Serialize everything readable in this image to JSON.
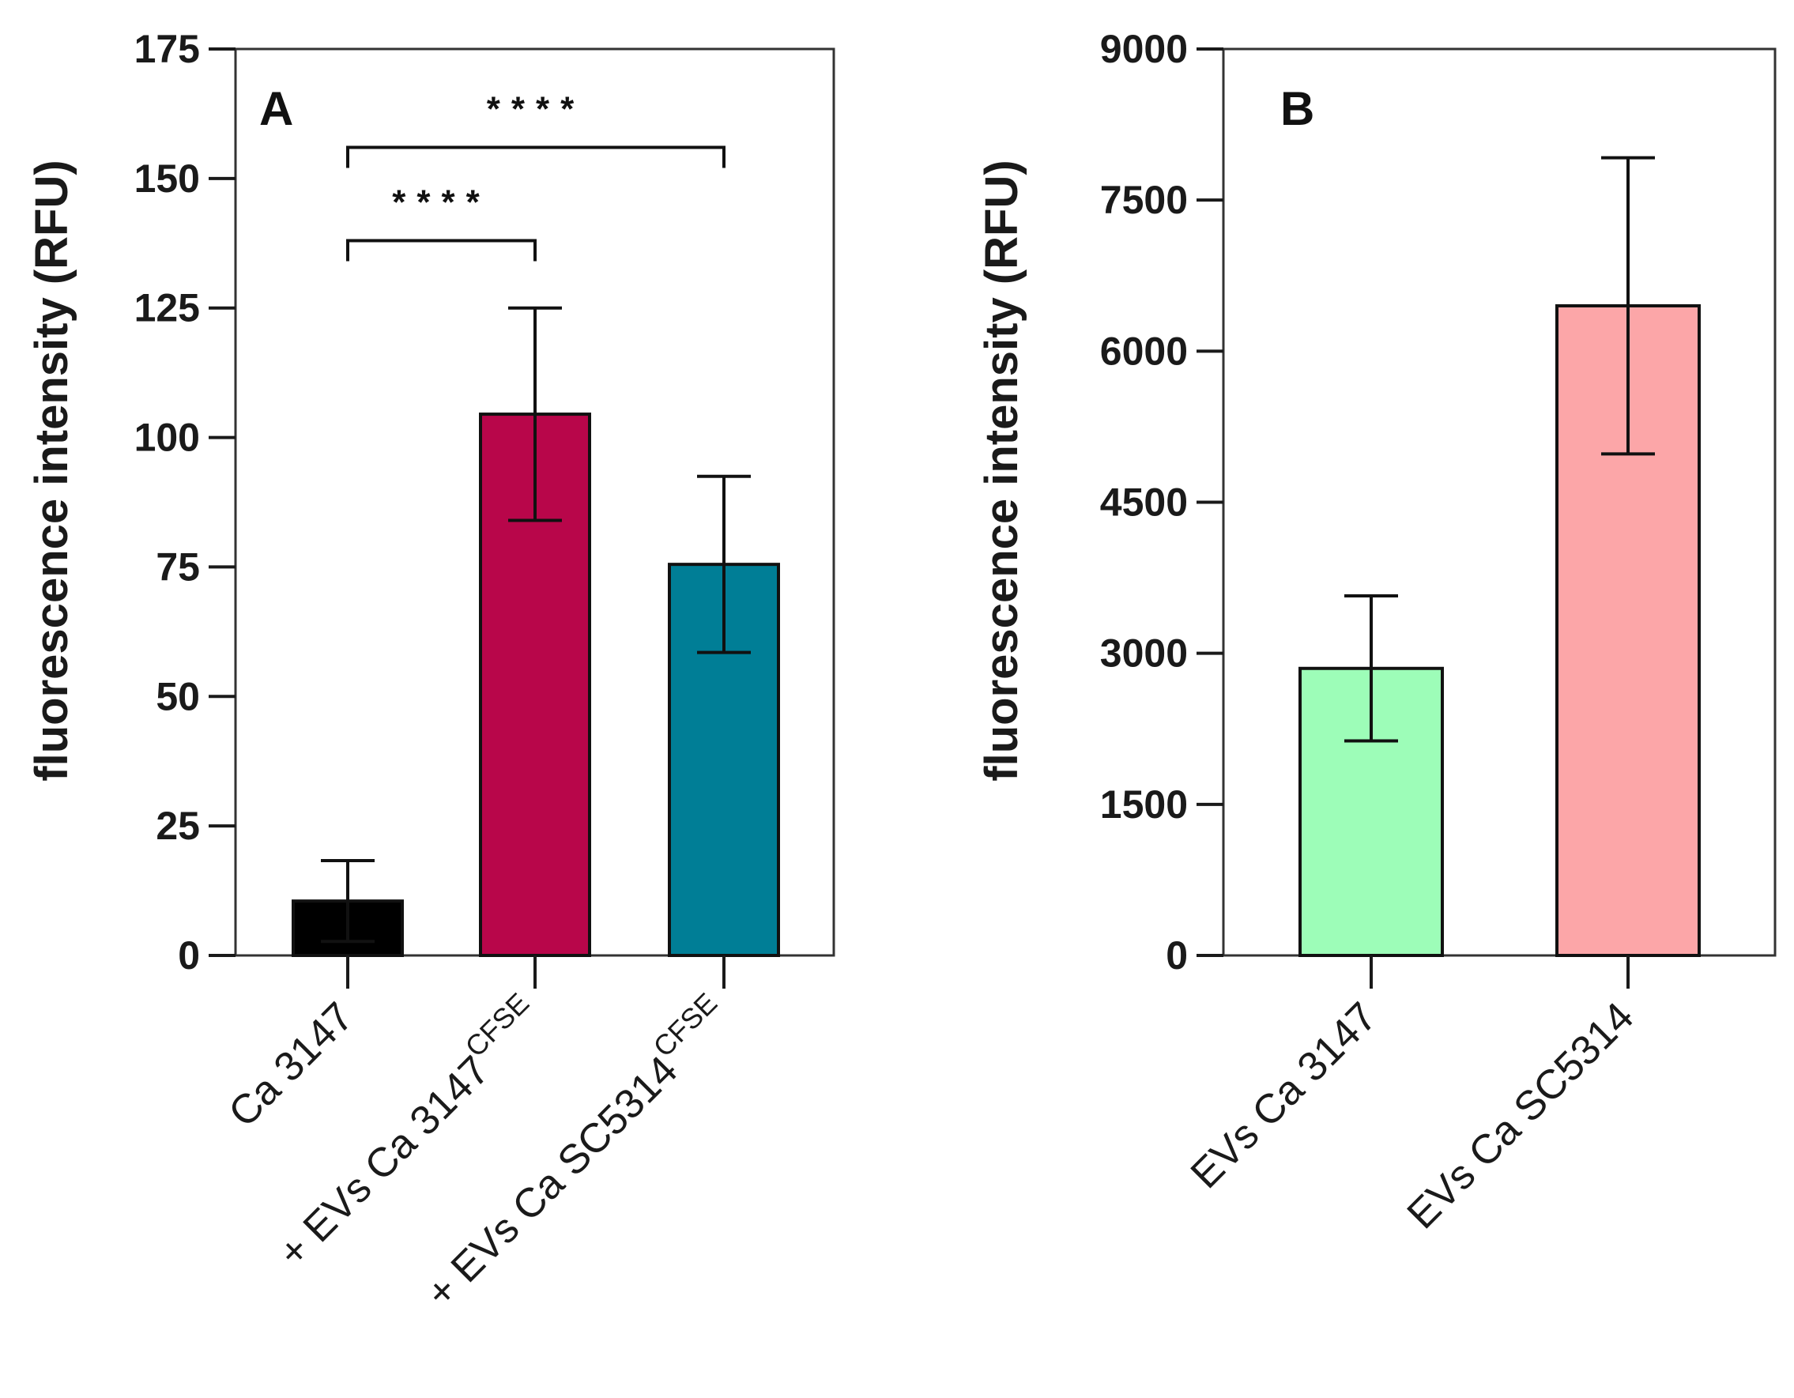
{
  "chart_data": [
    {
      "type": "bar",
      "panel": "A",
      "ylabel": "fluorescence intensity (RFU)",
      "ylim": [
        0,
        175
      ],
      "yticks": [
        0,
        25,
        50,
        75,
        100,
        125,
        150,
        175
      ],
      "categories": [
        {
          "main": "Ca 3147",
          "sup": ""
        },
        {
          "main": "+ EVs Ca 3147",
          "sup": "CFSE"
        },
        {
          "main": "+ EVs Ca SC5314",
          "sup": "CFSE"
        }
      ],
      "values": [
        10.5,
        104.5,
        75.5
      ],
      "errors": [
        7.8,
        20.5,
        17.0
      ],
      "colors": [
        "#000000",
        "#b8064a",
        "#007e96"
      ],
      "significance": [
        {
          "from": 0,
          "to": 1,
          "y": 138,
          "label": "****"
        },
        {
          "from": 0,
          "to": 2,
          "y": 156,
          "label": "****"
        }
      ]
    },
    {
      "type": "bar",
      "panel": "B",
      "ylabel": "fluorescence intensity (RFU)",
      "ylim": [
        0,
        9000
      ],
      "yticks": [
        0,
        1500,
        3000,
        4500,
        6000,
        7500,
        9000
      ],
      "categories": [
        {
          "main": "EVs Ca 3147",
          "sup": ""
        },
        {
          "main": "EVs Ca SC5314",
          "sup": ""
        }
      ],
      "values": [
        2850,
        6450
      ],
      "errors": [
        720,
        1470
      ],
      "colors": [
        "#9dfdb8",
        "#fca6a8"
      ],
      "significance": []
    }
  ]
}
